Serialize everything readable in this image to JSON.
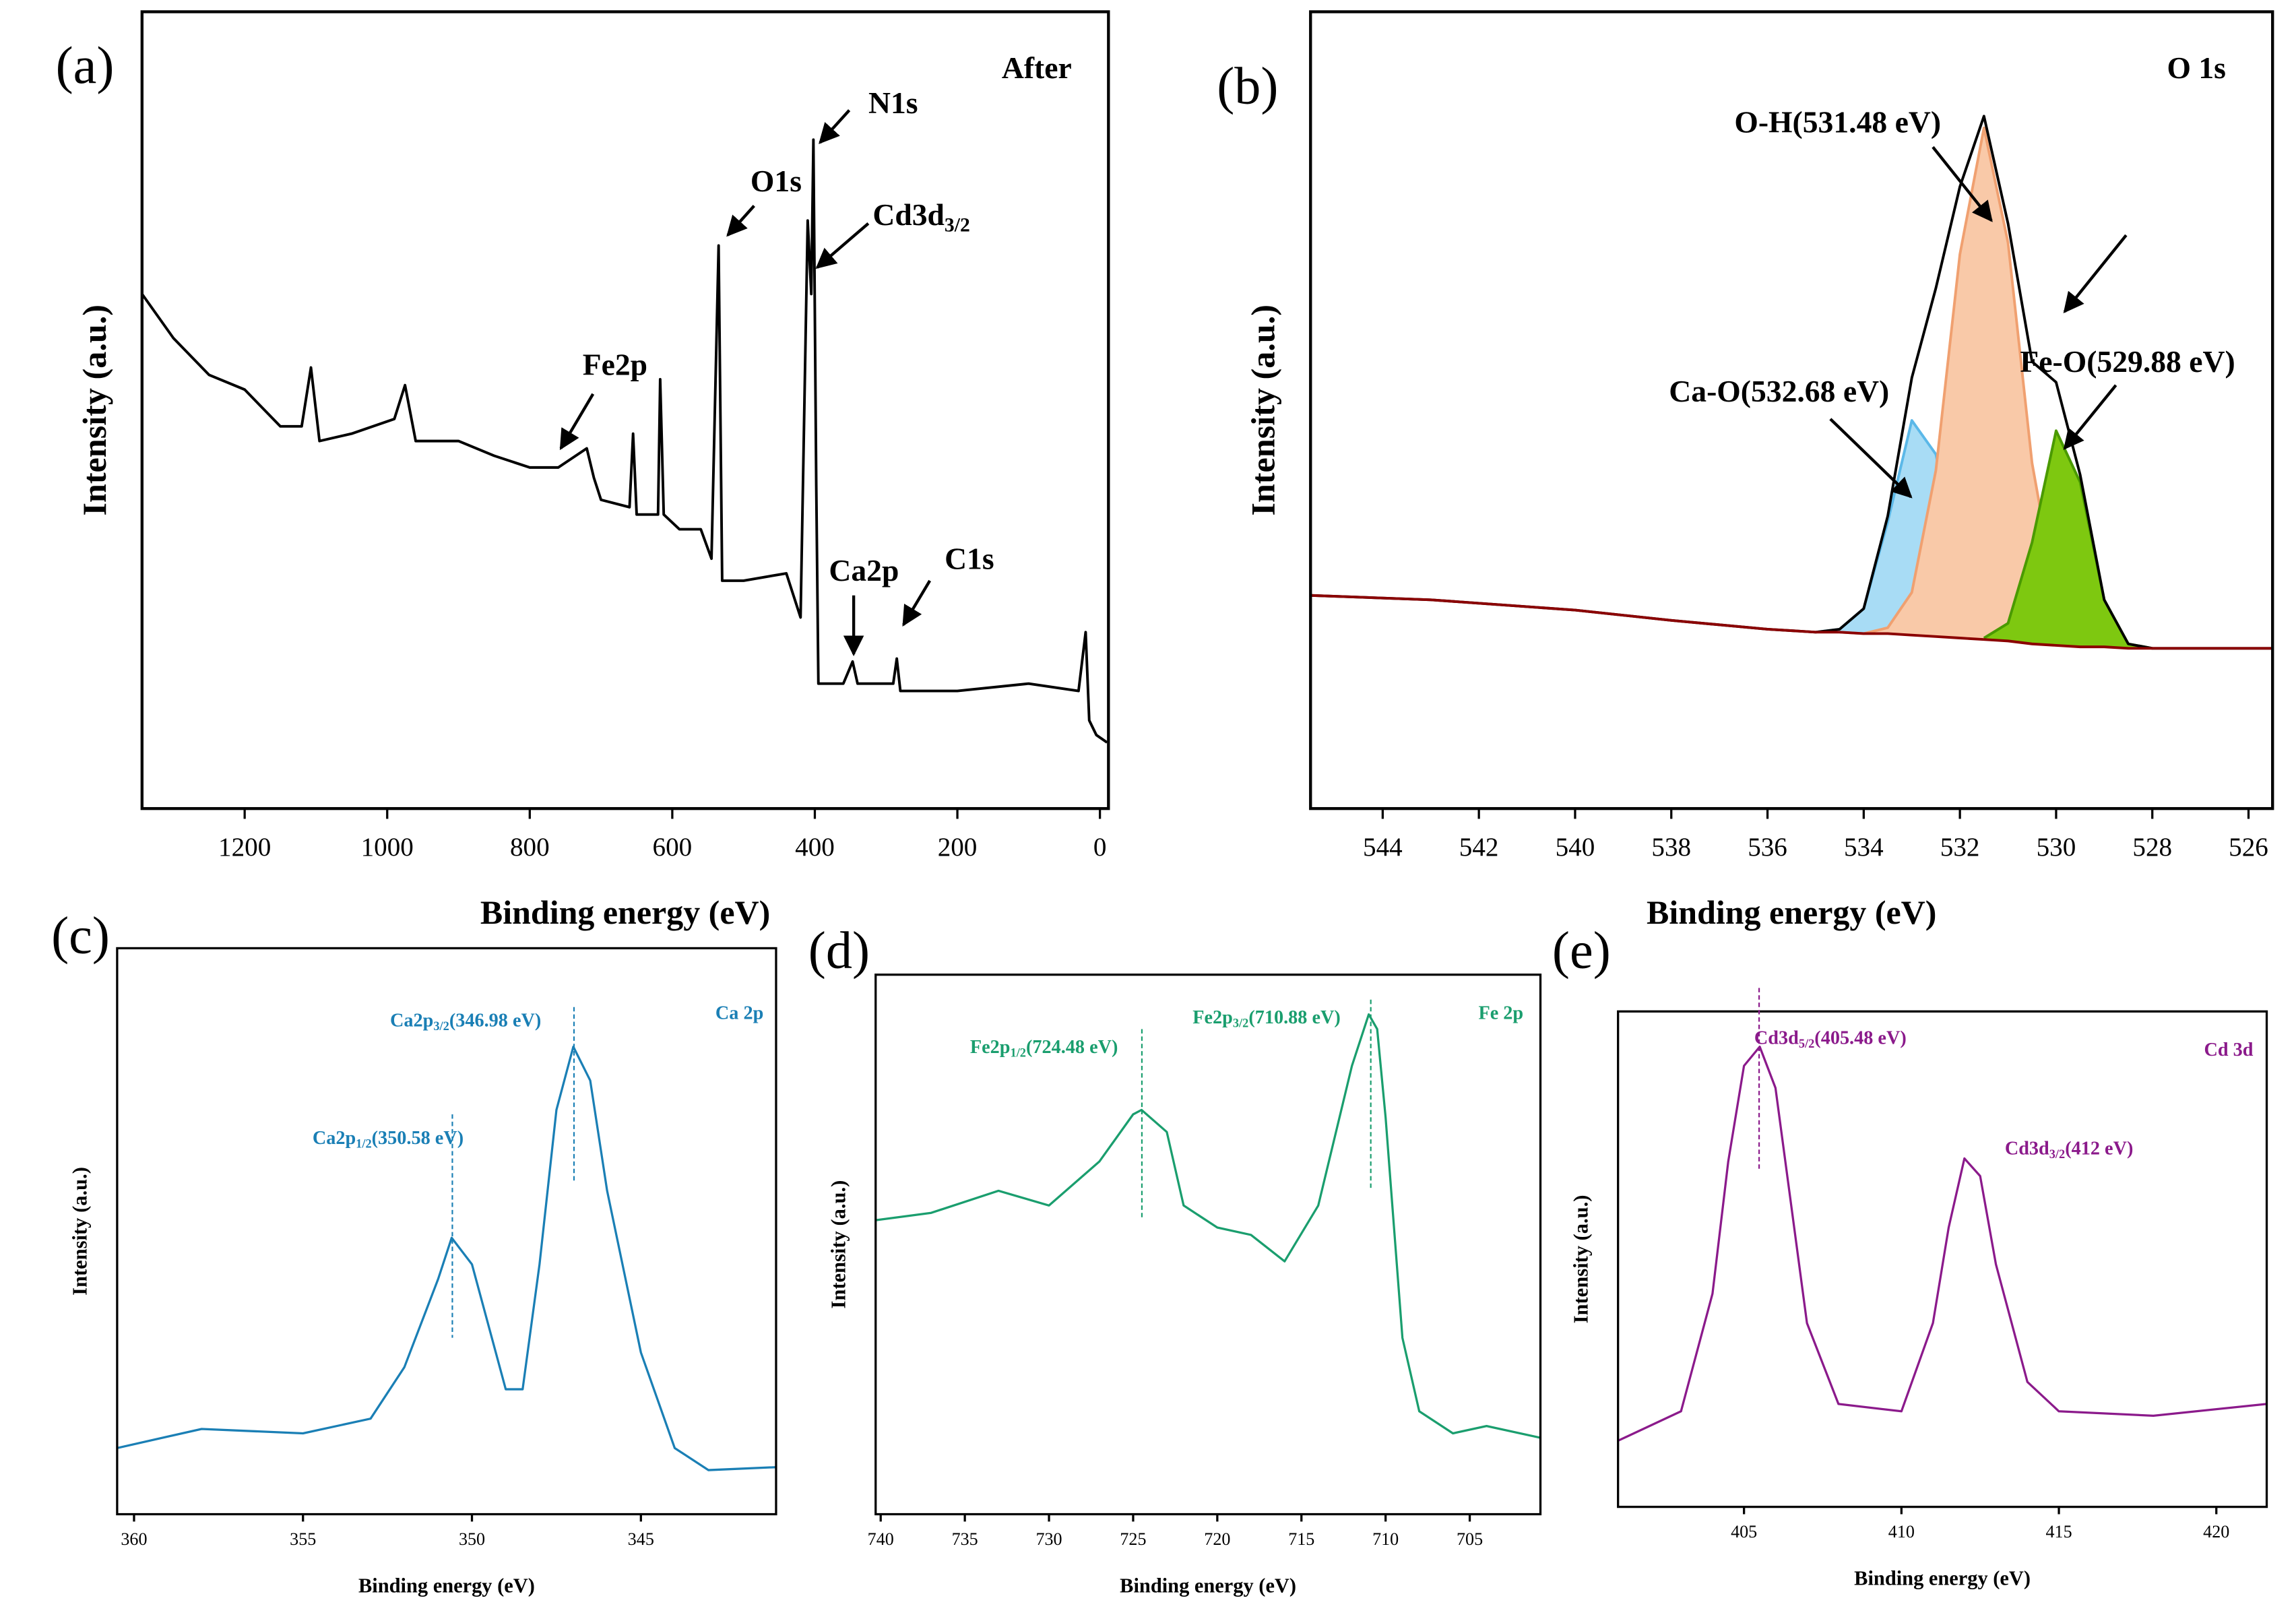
{
  "chart_data": [
    {
      "type": "line",
      "panel": "(a)",
      "x_label": "Binding energy (eV)",
      "y_label": "Intensity (a.u.)",
      "xlim": [
        1344,
        -12
      ],
      "ylim": [
        0,
        542
      ],
      "xticks": [
        1200,
        1000,
        800,
        600,
        400,
        200,
        0
      ],
      "x": [
        1344,
        1300,
        1250,
        1200,
        1150,
        1120,
        1107,
        1095,
        1050,
        990,
        975,
        960,
        900,
        850,
        800,
        760,
        720,
        710,
        700,
        660,
        655,
        650,
        620,
        617,
        612,
        590,
        560,
        545,
        535,
        530,
        500,
        440,
        420,
        410,
        405,
        402,
        398,
        395,
        360,
        347,
        340,
        290,
        285,
        280,
        200,
        100,
        30,
        20,
        15,
        5,
        -10
      ],
      "series": [
        {
          "color": "#000000",
          "values": [
            350,
            320,
            295,
            285,
            260,
            260,
            300,
            250,
            255,
            265,
            288,
            250,
            250,
            240,
            232,
            232,
            245,
            225,
            210,
            205,
            255,
            200,
            200,
            292,
            200,
            190,
            190,
            170,
            383,
            155,
            155,
            160,
            130,
            400,
            350,
            455,
            220,
            85,
            85,
            100,
            85,
            85,
            102,
            80,
            80,
            85,
            80,
            120,
            60,
            50,
            45
          ]
        }
      ],
      "annotations": [
        {
          "text": "After"
        },
        {
          "text": "N1s"
        },
        {
          "text": "O1s"
        },
        {
          "text": "Cd3d",
          "sub": "3/2"
        },
        {
          "text": "Fe2p"
        },
        {
          "text": "Ca2p"
        },
        {
          "text": "C1s"
        }
      ]
    },
    {
      "type": "line",
      "panel": "(b)",
      "x_label": "Binding energy (eV)",
      "y_label": "Intensity (a.u.)",
      "xlim": [
        545.5,
        525.5
      ],
      "ylim": [
        0,
        542
      ],
      "xticks": [
        544,
        542,
        540,
        538,
        536,
        534,
        532,
        530,
        528,
        526
      ],
      "x": [
        545.5,
        543,
        540,
        538,
        536,
        535,
        534.5,
        534,
        533.5,
        533,
        532.5,
        532,
        531.5,
        531,
        530.5,
        530,
        529.5,
        529,
        528.5,
        528,
        527,
        526,
        525.5
      ],
      "series": [
        {
          "color": "#5bb8e8",
          "fill": "#a8dcf5",
          "values": [
            null,
            null,
            null,
            null,
            null,
            120,
            122,
            136,
            195,
            264,
            241,
            162,
            122,
            115,
            null,
            null,
            null,
            null,
            null,
            null,
            null,
            null,
            null
          ]
        },
        {
          "color": "#f0a070",
          "fill": "#f9c9a8",
          "values": [
            null,
            null,
            null,
            null,
            null,
            null,
            120,
            119,
            123,
            147,
            230,
            377,
            463,
            385,
            235,
            144,
            115,
            110,
            null,
            null,
            null,
            null,
            null
          ]
        },
        {
          "color": "#4a9a00",
          "fill": "#7ec810",
          "values": [
            null,
            null,
            null,
            null,
            null,
            null,
            null,
            null,
            null,
            null,
            null,
            null,
            116,
            126,
            181,
            257,
            222,
            142,
            112,
            109,
            null,
            null,
            null
          ]
        },
        {
          "color": "#000000",
          "values": [
            145,
            142,
            135,
            128,
            122,
            120,
            122,
            136,
            199,
            293,
            354,
            423,
            471,
            398,
            304,
            290,
            227,
            142,
            112,
            109,
            109,
            109,
            109
          ]
        },
        {
          "color": "#8b0000",
          "values": [
            145,
            142,
            135,
            128,
            122,
            120,
            120,
            119,
            119,
            118,
            117,
            116,
            115,
            114,
            112,
            111,
            110,
            110,
            109,
            109,
            109,
            109,
            109
          ]
        }
      ],
      "annotations": [
        {
          "text": "O 1s"
        },
        {
          "text": "O-H(531.48 eV)"
        },
        {
          "text": "Ca-O(532.68 eV)"
        },
        {
          "text": "Fe-O(529.88 eV)"
        }
      ]
    },
    {
      "type": "line",
      "panel": "(c)",
      "x_label": "Binding energy (eV)",
      "y_label": "Intensity (a.u.)",
      "xlim": [
        360.5,
        341
      ],
      "ylim": [
        0,
        385
      ],
      "xticks": [
        360,
        355,
        350,
        345
      ],
      "x": [
        360.5,
        358,
        355,
        353,
        352,
        351,
        350.6,
        350,
        349,
        348.5,
        348,
        347.5,
        347,
        346.5,
        346,
        345,
        344,
        343,
        341
      ],
      "series": [
        {
          "color": "#1a7fb5",
          "values": [
            45,
            58,
            55,
            65,
            100,
            160,
            188,
            170,
            85,
            85,
            170,
            275,
            318,
            295,
            220,
            110,
            45,
            30,
            32
          ]
        }
      ],
      "peak_lines": [
        346.98,
        350.58
      ],
      "annotations": [
        {
          "text": "Ca 2p"
        },
        {
          "text": "Ca2p",
          "sub": "3/2",
          "rest": "(346.98 eV)"
        },
        {
          "text": "Ca2p",
          "sub": "1/2",
          "rest": "(350.58 eV)"
        }
      ]
    },
    {
      "type": "line",
      "panel": "(d)",
      "x_label": "Binding energy (eV)",
      "y_label": "Intensity (a.u.)",
      "xlim": [
        740.3,
        700.8
      ],
      "ylim": [
        0,
        367
      ],
      "xticks": [
        740,
        735,
        730,
        725,
        720,
        715,
        710,
        705
      ],
      "x": [
        740.3,
        737,
        733,
        730,
        727,
        725,
        724.5,
        723,
        722,
        720,
        718,
        716,
        714,
        712,
        711,
        710.5,
        710,
        709,
        708,
        706,
        704,
        700.8
      ],
      "series": [
        {
          "color": "#1a9e6e",
          "values": [
            200,
            205,
            220,
            210,
            240,
            272,
            275,
            260,
            210,
            195,
            190,
            172,
            210,
            305,
            340,
            330,
            270,
            120,
            70,
            55,
            60,
            52
          ]
        }
      ],
      "peak_lines": [
        724.48,
        710.88
      ],
      "annotations": [
        {
          "text": "Fe 2p"
        },
        {
          "text": "Fe2p",
          "sub": "1/2",
          "rest": "(724.48 eV)"
        },
        {
          "text": "Fe2p",
          "sub": "3/2",
          "rest": "(710.88 eV)"
        }
      ]
    },
    {
      "type": "line",
      "panel": "(e)",
      "x_label": "Binding energy (eV)",
      "y_label": "Intensity (a.u.)",
      "xlim": [
        401,
        421.6
      ],
      "ylim": [
        0,
        337
      ],
      "xticks": [
        405,
        410,
        415,
        420
      ],
      "x": [
        401,
        403,
        404,
        404.5,
        405,
        405.5,
        406,
        406.5,
        407,
        408,
        410,
        411,
        411.5,
        412,
        412.5,
        413,
        414,
        415,
        418,
        421.6
      ],
      "series": [
        {
          "color": "#8b1a8b",
          "values": [
            45,
            65,
            145,
            235,
            300,
            313,
            285,
            205,
            125,
            70,
            65,
            125,
            190,
            237,
            225,
            165,
            85,
            65,
            62,
            70
          ]
        }
      ],
      "peak_lines": [
        405.48
      ],
      "annotations": [
        {
          "text": "Cd 3d"
        },
        {
          "text": "Cd3d",
          "sub": "5/2",
          "rest": "(405.48 eV)"
        },
        {
          "text": "Cd3d",
          "sub": "3/2",
          "rest": "(412 eV)"
        }
      ]
    }
  ]
}
